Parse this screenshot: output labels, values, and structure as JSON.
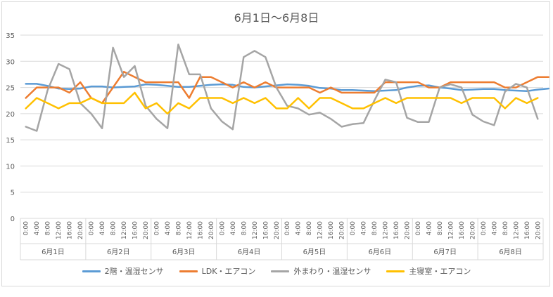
{
  "chart_data": {
    "type": "line",
    "title": "6月1日～6月8日",
    "xlabel": "",
    "ylabel": "",
    "ylim": [
      0,
      35
    ],
    "yticks": [
      0,
      5,
      10,
      15,
      20,
      25,
      30,
      35
    ],
    "grid": true,
    "legend_position": "bottom",
    "hour_labels": [
      "0:00",
      "4:00",
      "8:00",
      "12:00",
      "16:00",
      "20:00"
    ],
    "day_groups": [
      "6月1日",
      "6月2日",
      "6月3日",
      "6月4日",
      "6月5日",
      "6月6日",
      "6月7日",
      "6月8日"
    ],
    "series": [
      {
        "name": "2階・温湿センサ",
        "color": "#5b9bd5",
        "values": [
          25.7,
          25.7,
          25.3,
          24.8,
          24.7,
          24.8,
          25.2,
          25.2,
          25.0,
          25.1,
          25.2,
          25.6,
          25.5,
          25.3,
          25.1,
          25.1,
          25.3,
          25.5,
          25.6,
          25.5,
          25.1,
          25.0,
          25.2,
          25.4,
          25.6,
          25.5,
          25.3,
          24.9,
          24.8,
          24.5,
          24.5,
          24.4,
          24.3,
          24.4,
          24.5,
          25.0,
          25.3,
          25.4,
          25.0,
          24.8,
          24.5,
          24.6,
          24.7,
          24.7,
          24.5,
          24.4,
          24.3,
          24.6,
          24.8
        ]
      },
      {
        "name": "LDK・エアコン",
        "color": "#ed7d31",
        "values": [
          23.0,
          25.0,
          25.0,
          25.0,
          24.0,
          26.0,
          23.0,
          22.0,
          25.0,
          28.0,
          27.0,
          26.0,
          26.0,
          26.0,
          26.0,
          23.0,
          27.0,
          27.0,
          26.0,
          25.0,
          26.0,
          25.0,
          26.0,
          25.0,
          25.0,
          25.0,
          25.0,
          24.0,
          25.0,
          24.0,
          24.0,
          24.0,
          24.0,
          26.0,
          26.0,
          26.0,
          26.0,
          25.0,
          25.0,
          26.0,
          26.0,
          26.0,
          26.0,
          26.0,
          25.0,
          25.0,
          26.0,
          27.0,
          27.0
        ]
      },
      {
        "name": "外まわり・温湿センサ",
        "color": "#a5a5a5",
        "values": [
          17.5,
          16.7,
          24.5,
          29.5,
          28.5,
          22.0,
          20.0,
          17.2,
          32.6,
          27.0,
          29.1,
          21.5,
          19.0,
          17.2,
          33.2,
          27.5,
          27.5,
          21.0,
          18.5,
          17.0,
          30.8,
          32.0,
          30.8,
          25.0,
          21.5,
          21.0,
          19.8,
          20.2,
          19.0,
          17.5,
          18.0,
          18.2,
          22.5,
          26.5,
          26.0,
          19.2,
          18.4,
          18.4,
          25.0,
          25.6,
          25.0,
          19.8,
          18.5,
          17.8,
          24.2,
          25.7,
          25.0,
          19.0
        ]
      },
      {
        "name": "主寝室・エアコン",
        "color": "#ffc000",
        "values": [
          21.0,
          23.0,
          22.0,
          21.0,
          22.0,
          22.0,
          23.0,
          22.0,
          22.0,
          22.0,
          24.0,
          21.0,
          22.0,
          20.0,
          22.0,
          21.0,
          23.0,
          23.0,
          23.0,
          22.0,
          23.0,
          22.0,
          23.0,
          21.0,
          21.0,
          23.0,
          21.0,
          23.0,
          23.0,
          22.0,
          21.0,
          21.0,
          22.0,
          23.0,
          22.0,
          23.0,
          23.0,
          23.0,
          23.0,
          23.0,
          22.0,
          23.0,
          23.0,
          23.0,
          21.0,
          23.0,
          22.0,
          23.0
        ]
      }
    ]
  }
}
